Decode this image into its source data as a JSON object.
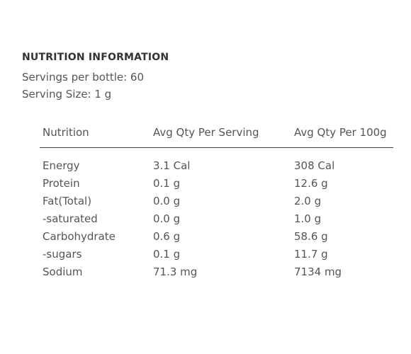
{
  "title": "NUTRITION INFORMATION",
  "servings_per_bottle": "Servings per bottle: 60",
  "serving_size": "Serving Size: 1 g",
  "table": {
    "columns": [
      "Nutrition",
      "Avg Qty Per Serving",
      "Avg Qty Per 100g"
    ],
    "rows": [
      [
        "Energy",
        "3.1 Cal",
        "308 Cal"
      ],
      [
        "Protein",
        "0.1 g",
        "12.6 g"
      ],
      [
        "Fat(Total)",
        "0.0 g",
        "2.0 g"
      ],
      [
        "-saturated",
        "0.0 g",
        "1.0 g"
      ],
      [
        "Carbohydrate",
        "0.6 g",
        "58.6 g"
      ],
      [
        "-sugars",
        "0.1 g",
        "11.7 g"
      ],
      [
        "Sodium",
        "71.3 mg",
        "7134 mg"
      ]
    ]
  }
}
